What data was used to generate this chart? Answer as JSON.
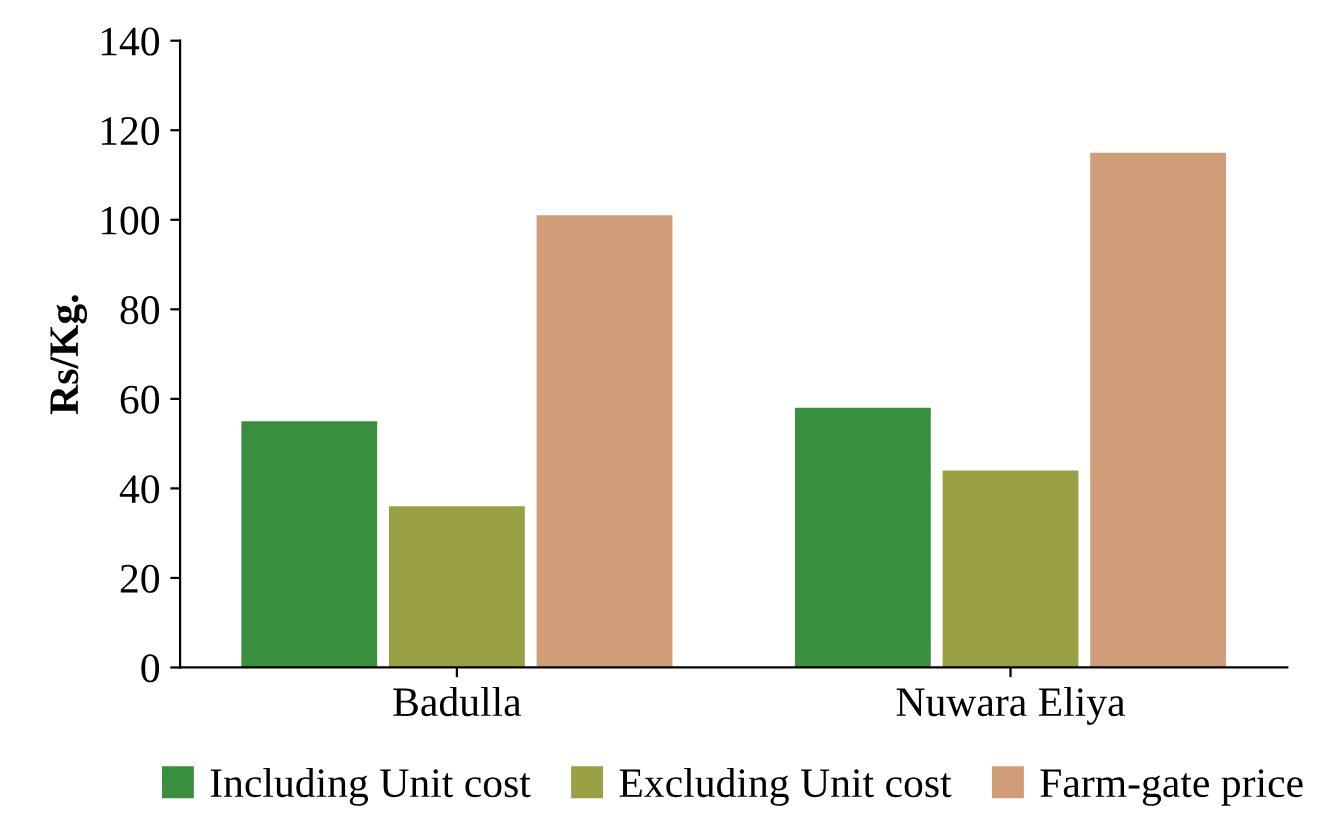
{
  "chart_data": {
    "type": "bar",
    "ylabel": "Rs/Kg.",
    "categories": [
      "Badulla",
      "Nuwara Eliya"
    ],
    "series": [
      {
        "name": "Including Unit cost",
        "color": "#3a8f3f",
        "values": [
          55,
          58
        ]
      },
      {
        "name": "Excluding Unit cost",
        "color": "#98a043",
        "values": [
          36,
          44
        ]
      },
      {
        "name": "Farm-gate price",
        "color": "#cf9e78",
        "values": [
          101,
          115
        ]
      }
    ],
    "ylim": [
      0,
      140
    ],
    "yticks": [
      0,
      20,
      40,
      60,
      80,
      100,
      120,
      140
    ],
    "grid": false,
    "legend": "bottom"
  }
}
